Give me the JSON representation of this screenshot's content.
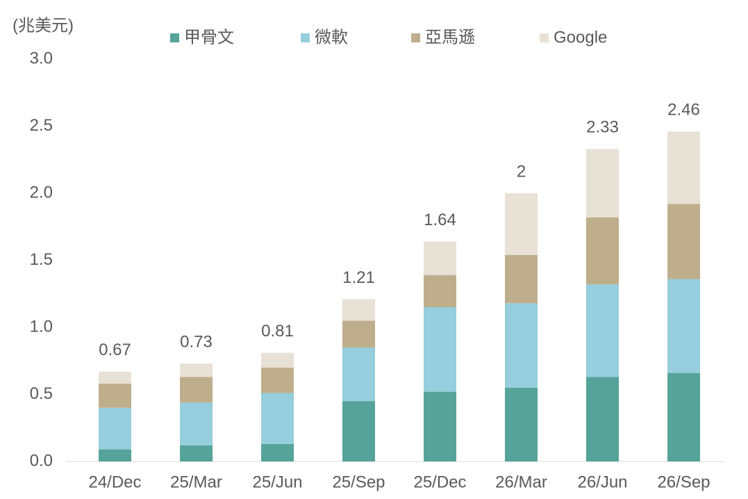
{
  "chart_data": {
    "type": "stacked_bar",
    "y_label": "(兆美元)",
    "categories": [
      "24/Dec",
      "25/Mar",
      "25/Jun",
      "25/Sep",
      "25/Dec",
      "26/Mar",
      "26/Jun",
      "26/Sep"
    ],
    "series": [
      {
        "name": "甲骨文",
        "color": "#56a39a",
        "values": [
          0.09,
          0.12,
          0.13,
          0.45,
          0.52,
          0.55,
          0.63,
          0.66
        ]
      },
      {
        "name": "微軟",
        "color": "#96cedd",
        "values": [
          0.31,
          0.32,
          0.38,
          0.4,
          0.63,
          0.63,
          0.69,
          0.7
        ]
      },
      {
        "name": "亞馬遜",
        "color": "#bfae8c",
        "values": [
          0.18,
          0.19,
          0.19,
          0.2,
          0.24,
          0.36,
          0.5,
          0.56
        ]
      },
      {
        "name": "Google",
        "color": "#e8e1d5",
        "values": [
          0.09,
          0.1,
          0.11,
          0.16,
          0.25,
          0.46,
          0.51,
          0.54
        ]
      }
    ],
    "totals": [
      0.67,
      0.73,
      0.81,
      1.21,
      1.64,
      2,
      2.33,
      2.46
    ],
    "ylim": [
      0,
      3
    ],
    "yticks": [
      {
        "value": 0,
        "label": "0.0"
      },
      0.5,
      {
        "value": 1,
        "label": "1.0"
      },
      1.5,
      {
        "value": 2,
        "label": "2.0"
      },
      2.5,
      {
        "value": 3,
        "label": "3.0"
      }
    ],
    "legend": "top"
  }
}
